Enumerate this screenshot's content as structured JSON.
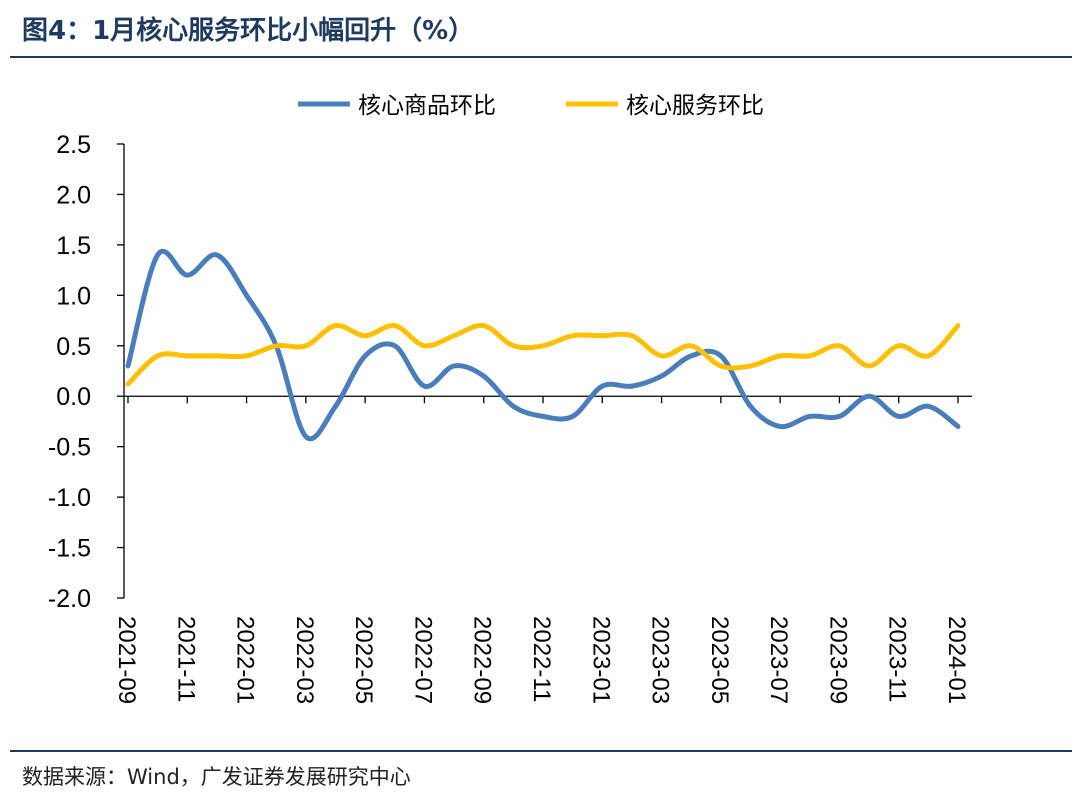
{
  "title": "图4：1月核心服务环比小幅回升（%）",
  "source": "数据来源：Wind，广发证券发展研究中心",
  "chart_data": {
    "type": "line",
    "title": "图4：1月核心服务环比小幅回升（%）",
    "xlabel": "",
    "ylabel": "",
    "ylim": [
      -2.0,
      2.5
    ],
    "yticks": [
      "2.5",
      "2.0",
      "1.5",
      "1.0",
      "0.5",
      "0.0",
      "-0.5",
      "-1.0",
      "-1.5",
      "-2.0"
    ],
    "xtick_labels": [
      "2021-09",
      "2021-11",
      "2022-01",
      "2022-03",
      "2022-05",
      "2022-07",
      "2022-09",
      "2022-11",
      "2023-01",
      "2023-03",
      "2023-05",
      "2023-07",
      "2023-09",
      "2023-11",
      "2024-01"
    ],
    "x": [
      "2021-09",
      "2021-10",
      "2021-11",
      "2021-12",
      "2022-01",
      "2022-02",
      "2022-03",
      "2022-04",
      "2022-05",
      "2022-06",
      "2022-07",
      "2022-08",
      "2022-09",
      "2022-10",
      "2022-11",
      "2022-12",
      "2023-01",
      "2023-02",
      "2023-03",
      "2023-04",
      "2023-05",
      "2023-06",
      "2023-07",
      "2023-08",
      "2023-09",
      "2023-10",
      "2023-11",
      "2023-12",
      "2024-01"
    ],
    "grid": false,
    "legend_position": "top-center",
    "series": [
      {
        "name": "核心商品环比",
        "color": "#4a7ebb",
        "values": [
          0.3,
          1.4,
          1.2,
          1.4,
          1.0,
          0.5,
          -0.4,
          -0.1,
          0.4,
          0.5,
          0.1,
          0.3,
          0.2,
          -0.1,
          -0.2,
          -0.2,
          0.1,
          0.1,
          0.2,
          0.4,
          0.4,
          -0.1,
          -0.3,
          -0.2,
          -0.2,
          0.0,
          -0.2,
          -0.1,
          -0.3
        ]
      },
      {
        "name": "核心服务环比",
        "color": "#ffc000",
        "values": [
          0.12,
          0.4,
          0.4,
          0.4,
          0.4,
          0.5,
          0.5,
          0.7,
          0.6,
          0.7,
          0.5,
          0.6,
          0.7,
          0.5,
          0.5,
          0.6,
          0.6,
          0.6,
          0.4,
          0.5,
          0.3,
          0.3,
          0.4,
          0.4,
          0.5,
          0.3,
          0.5,
          0.4,
          0.7
        ]
      }
    ]
  }
}
